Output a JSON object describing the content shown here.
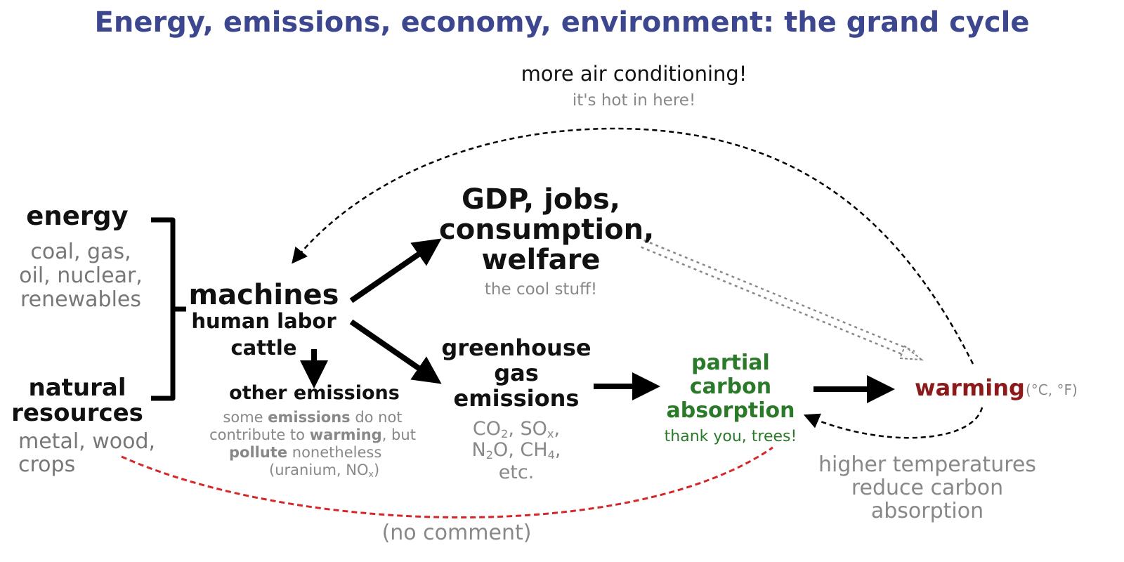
{
  "title": "Energy, emissions, economy, environment: the grand cycle",
  "nodes": {
    "ac": {
      "label": "more air conditioning!",
      "note": "it's hot in here!"
    },
    "energy": {
      "label": "energy",
      "line1": "coal, gas,",
      "line2": "oil, nuclear,",
      "line3": "renewables"
    },
    "natural": {
      "line1": "natural",
      "line2": "resources",
      "line3": "metal, wood,",
      "line4": "crops"
    },
    "machines": {
      "line1": "machines",
      "line2": "human labor",
      "line3": "cattle"
    },
    "gdp": {
      "line1": "GDP, jobs,",
      "line2": "consumption,",
      "line3": "welfare",
      "note": "the cool stuff!"
    },
    "other": {
      "label": "other emissions",
      "n1a": "some ",
      "n1b": "emissions",
      "n1c": " do not",
      "n2a": "contribute to ",
      "n2b": "warming",
      "n2c": ", but",
      "n3a": "pollute",
      "n3b": " nonetheless",
      "n4a": "(uranium, NO",
      "n4b": "x",
      "n4c": ")"
    },
    "ghg": {
      "line1": "greenhouse",
      "line2": "gas",
      "line3": "emissions",
      "co": "CO",
      "co_sub": "2",
      "sox": ", SO",
      "sox_sub": "x",
      "sox_end": ",",
      "n": "N",
      "n_sub": "2",
      "och": "O, CH",
      "ch_sub": "4",
      "ch_end": ",",
      "etc": "etc."
    },
    "absorption": {
      "line1": "partial",
      "line2": "carbon",
      "line3": "absorption",
      "note": "thank you, trees!"
    },
    "warming": {
      "label": "warming",
      "units": "(°C, °F)"
    },
    "higher": {
      "line1": "higher temperatures",
      "line2": "reduce carbon",
      "line3": "absorption"
    },
    "nocomment": {
      "label": "(no comment)"
    }
  },
  "colors": {
    "title": "#3d4790",
    "green": "#2a7a2a",
    "red_text": "#8b1a1a",
    "red_line": "#d62728",
    "gray": "#777777"
  }
}
